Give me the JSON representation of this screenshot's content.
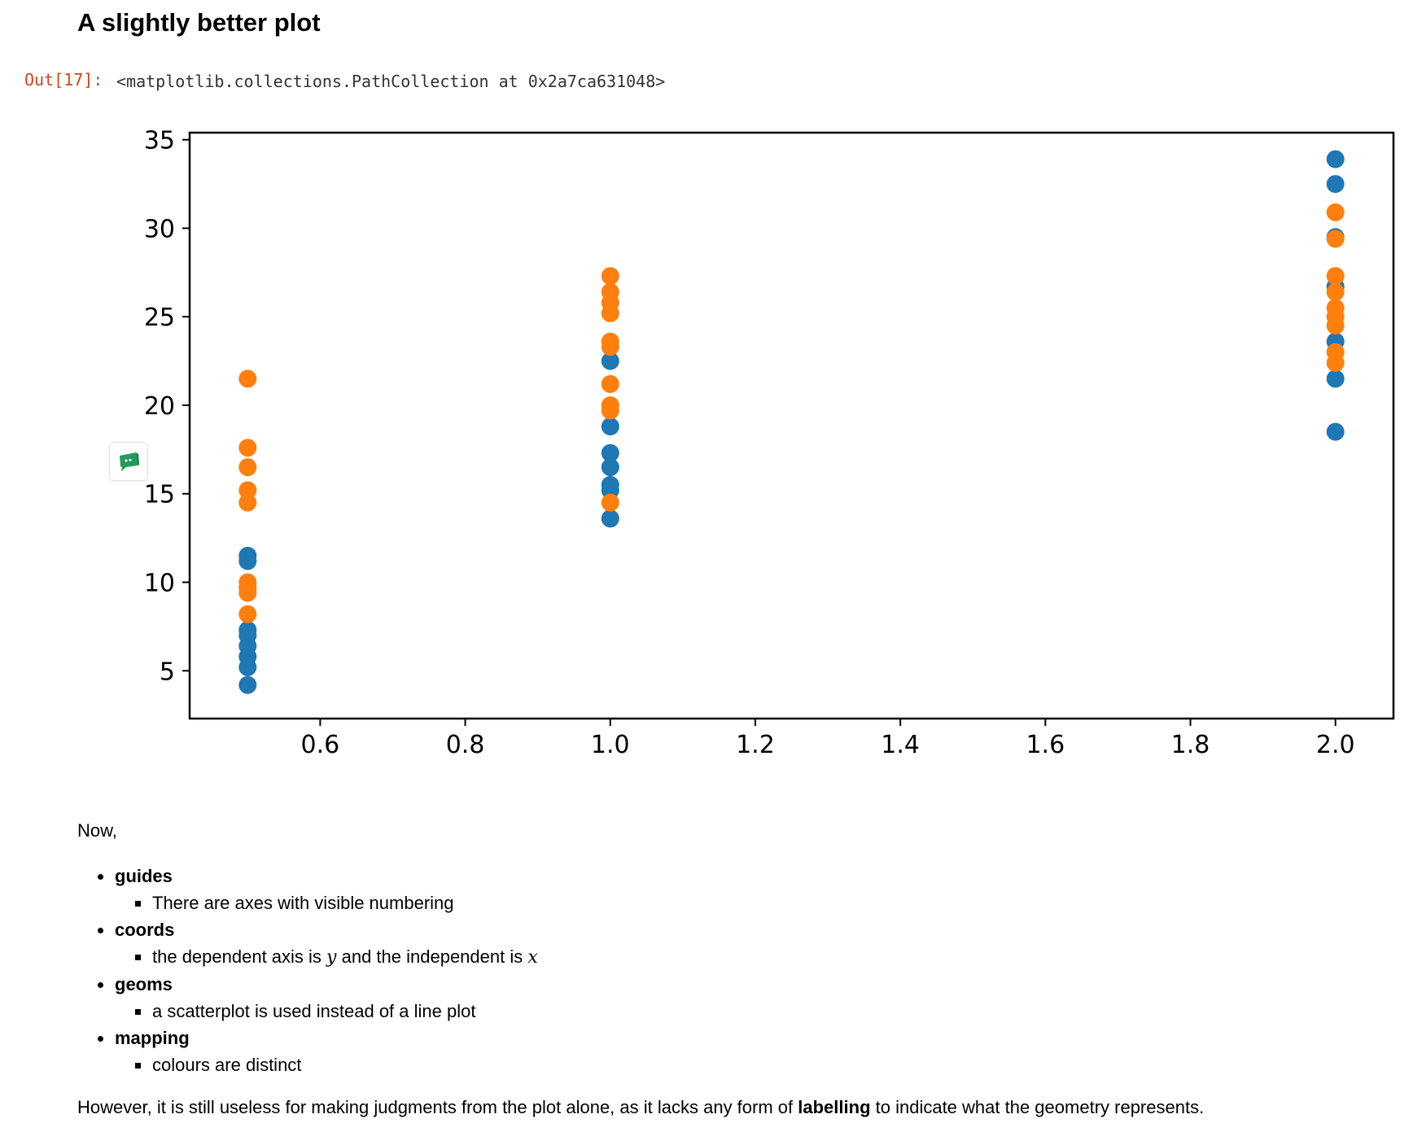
{
  "heading": "A slightly better plot",
  "output": {
    "prompt": "Out[17]:",
    "text": "<matplotlib.collections.PathCollection at 0x2a7ca631048>"
  },
  "widget_icon": "chat-bubble-icon",
  "chart_data": {
    "type": "scatter",
    "title": "",
    "xlabel": "",
    "ylabel": "",
    "xlim": [
      0.42,
      2.08
    ],
    "ylim": [
      2.3,
      35.4
    ],
    "xticks": [
      0.6,
      0.8,
      1.0,
      1.2,
      1.4,
      1.6,
      1.8,
      2.0
    ],
    "xtick_labels": [
      "0.6",
      "0.8",
      "1.0",
      "1.2",
      "1.4",
      "1.6",
      "1.8",
      "2.0"
    ],
    "yticks": [
      5,
      10,
      15,
      20,
      25,
      30,
      35
    ],
    "ytick_labels": [
      "5",
      "10",
      "15",
      "20",
      "25",
      "30",
      "35"
    ],
    "grid": false,
    "series": [
      {
        "color": "#1f77b4",
        "points": [
          [
            0.5,
            4.2
          ],
          [
            0.5,
            5.2
          ],
          [
            0.5,
            5.8
          ],
          [
            0.5,
            6.4
          ],
          [
            0.5,
            7.0
          ],
          [
            0.5,
            7.3
          ],
          [
            0.5,
            11.2
          ],
          [
            0.5,
            11.5
          ],
          [
            1.0,
            13.6
          ],
          [
            1.0,
            15.2
          ],
          [
            1.0,
            15.5
          ],
          [
            1.0,
            16.5
          ],
          [
            1.0,
            17.3
          ],
          [
            1.0,
            18.8
          ],
          [
            1.0,
            22.5
          ],
          [
            2.0,
            18.5
          ],
          [
            2.0,
            21.5
          ],
          [
            2.0,
            23.6
          ],
          [
            2.0,
            26.7
          ],
          [
            2.0,
            29.5
          ],
          [
            2.0,
            32.5
          ],
          [
            2.0,
            33.9
          ]
        ]
      },
      {
        "color": "#ff7f0e",
        "points": [
          [
            0.5,
            8.2
          ],
          [
            0.5,
            9.4
          ],
          [
            0.5,
            9.7
          ],
          [
            0.5,
            10.0
          ],
          [
            0.5,
            14.5
          ],
          [
            0.5,
            15.2
          ],
          [
            0.5,
            16.5
          ],
          [
            0.5,
            17.6
          ],
          [
            0.5,
            21.5
          ],
          [
            1.0,
            14.5
          ],
          [
            1.0,
            19.7
          ],
          [
            1.0,
            20.0
          ],
          [
            1.0,
            21.2
          ],
          [
            1.0,
            23.3
          ],
          [
            1.0,
            23.6
          ],
          [
            1.0,
            25.2
          ],
          [
            1.0,
            25.8
          ],
          [
            1.0,
            26.4
          ],
          [
            1.0,
            27.3
          ],
          [
            2.0,
            22.4
          ],
          [
            2.0,
            23.0
          ],
          [
            2.0,
            24.5
          ],
          [
            2.0,
            25.0
          ],
          [
            2.0,
            25.5
          ],
          [
            2.0,
            26.4
          ],
          [
            2.0,
            27.3
          ],
          [
            2.0,
            29.4
          ],
          [
            2.0,
            30.9
          ]
        ]
      }
    ]
  },
  "markdown": {
    "intro": "Now,",
    "items": [
      {
        "term": "guides",
        "sub_parts": [
          "There are axes with visible numbering"
        ]
      },
      {
        "term": "coords",
        "sub_parts": [
          "the dependent axis is ",
          "y",
          " and the independent is ",
          "x"
        ]
      },
      {
        "term": "geoms",
        "sub_parts": [
          "a scatterplot is used instead of a line plot"
        ]
      },
      {
        "term": "mapping",
        "sub_parts": [
          "colours are distinct"
        ]
      }
    ],
    "closing_before": "However, it is still useless for making judgments from the plot alone, as it lacks any form of ",
    "closing_bold": "labelling",
    "closing_after": " to indicate what the geometry represents."
  }
}
